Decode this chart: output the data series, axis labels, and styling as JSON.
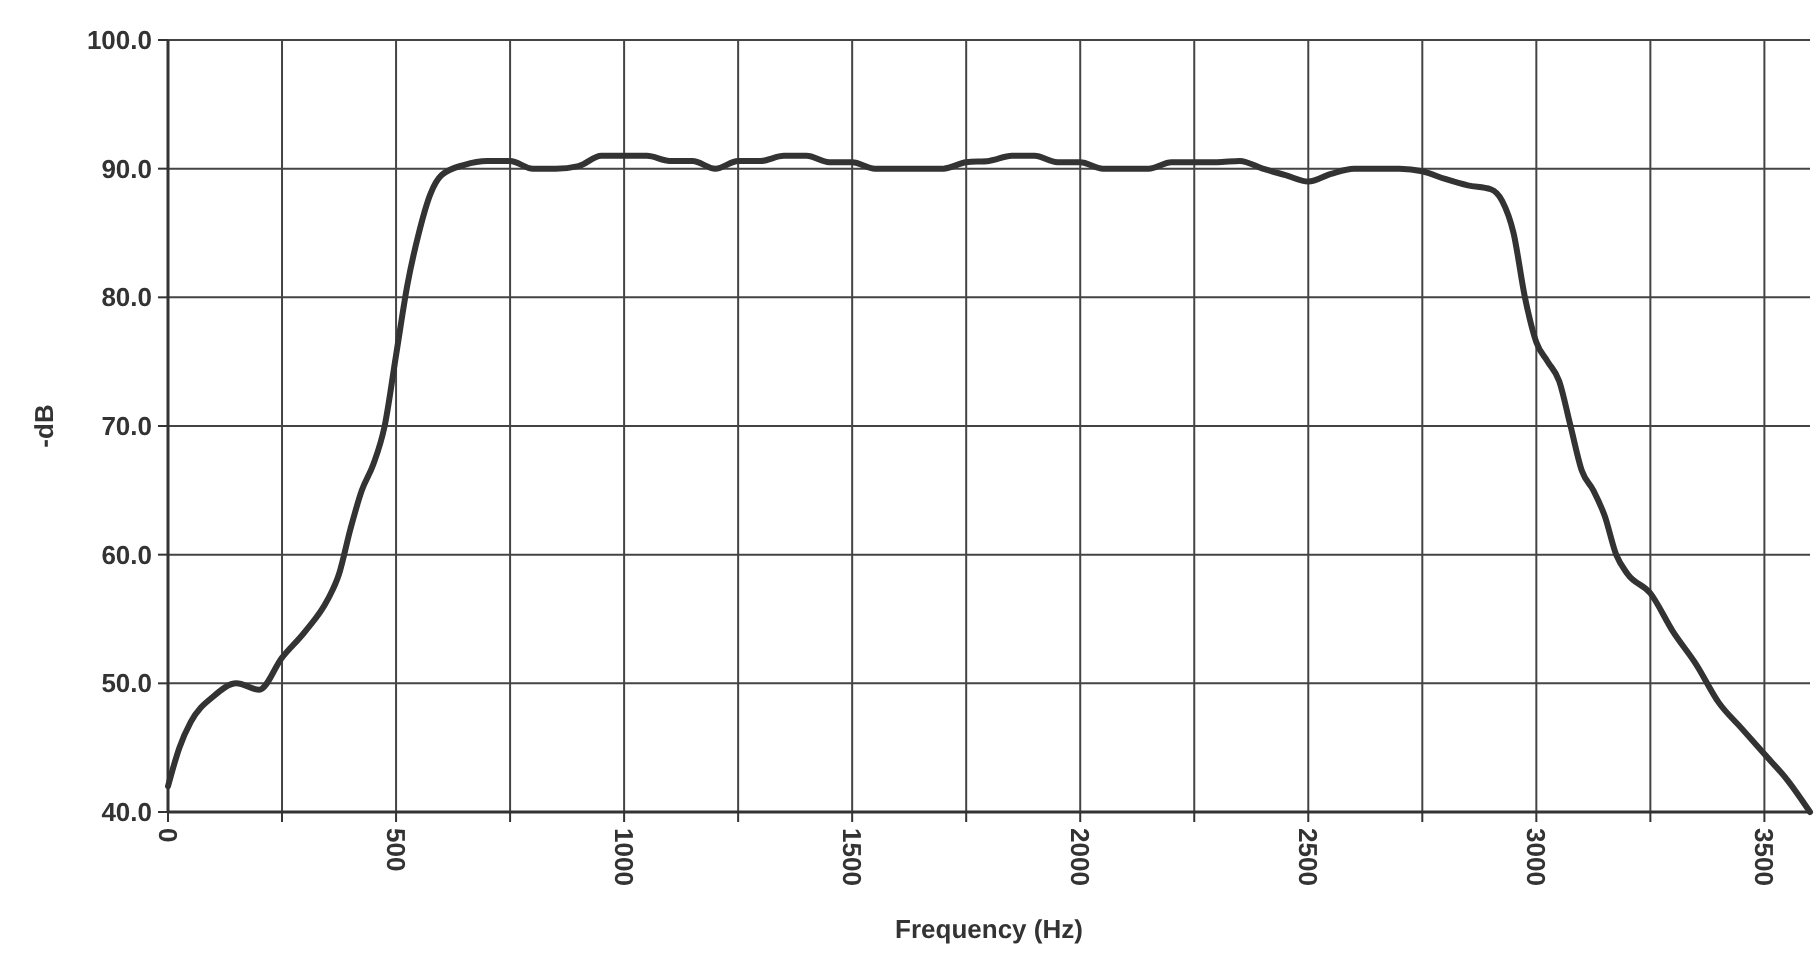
{
  "chart_data": {
    "type": "line",
    "xlabel": "Frequency (Hz)",
    "ylabel": "-dB",
    "x": [
      0,
      25,
      50,
      100,
      150,
      200,
      250,
      300,
      350,
      375,
      400,
      425,
      450,
      475,
      500,
      525,
      550,
      575,
      600,
      650,
      700,
      750,
      800,
      850,
      900,
      950,
      1000,
      1050,
      1100,
      1150,
      1200,
      1250,
      1300,
      1350,
      1400,
      1450,
      1500,
      1550,
      1600,
      1700,
      1750,
      1800,
      1850,
      1900,
      1950,
      2000,
      2050,
      2100,
      2150,
      2200,
      2250,
      2300,
      2350,
      2400,
      2450,
      2500,
      2550,
      2600,
      2650,
      2700,
      2750,
      2800,
      2850,
      2900,
      2925,
      2950,
      2975,
      3000,
      3025,
      3050,
      3075,
      3100,
      3125,
      3150,
      3175,
      3200,
      3250,
      3300,
      3350,
      3400,
      3450,
      3500,
      3550,
      3600
    ],
    "series": [
      {
        "color": "#333333",
        "values": [
          42,
          45,
          47,
          49,
          50,
          49.5,
          52,
          54,
          56.5,
          58.5,
          62,
          65,
          67,
          70,
          75.5,
          81,
          85,
          88,
          89.5,
          90.3,
          90.6,
          90.6,
          90,
          90,
          90.2,
          91,
          91,
          91,
          90.6,
          90.6,
          90,
          90.6,
          90.6,
          91,
          91,
          90.5,
          90.5,
          90,
          90,
          90,
          90.5,
          90.6,
          91,
          91,
          90.5,
          90.5,
          90,
          90,
          90,
          90.5,
          90.5,
          90.5,
          90.6,
          90,
          89.5,
          89,
          89.6,
          90,
          90,
          90,
          89.8,
          89.2,
          88.7,
          88.4,
          87.5,
          85,
          80,
          76.5,
          75,
          73.5,
          70,
          66.5,
          65,
          63,
          60,
          58.5,
          57,
          54,
          51.5,
          48.5,
          46.5,
          44.5,
          42.5,
          40
        ]
      }
    ],
    "xlim": [
      0,
      3600
    ],
    "xticks": [
      0,
      {
        "value": 250,
        "label": null
      },
      500,
      {
        "value": 750,
        "label": null
      },
      1000,
      {
        "value": 1250,
        "label": null
      },
      1500,
      {
        "value": 1750,
        "label": null
      },
      2000,
      {
        "value": 2250,
        "label": null
      },
      2500,
      {
        "value": 2750,
        "label": null
      },
      3000,
      {
        "value": 3250,
        "label": null
      },
      3500
    ],
    "ylim": [
      40,
      100
    ],
    "yticks": [
      {
        "value": 40,
        "label": "40.0"
      },
      {
        "value": 50,
        "label": "50.0"
      },
      {
        "value": 60,
        "label": "60.0"
      },
      {
        "value": 70,
        "label": "70.0"
      },
      {
        "value": 80,
        "label": "80.0"
      },
      {
        "value": 90,
        "label": "90.0"
      },
      {
        "value": 100,
        "label": "100.0"
      }
    ],
    "grid": true,
    "line_style": "solid",
    "marker": "none"
  }
}
